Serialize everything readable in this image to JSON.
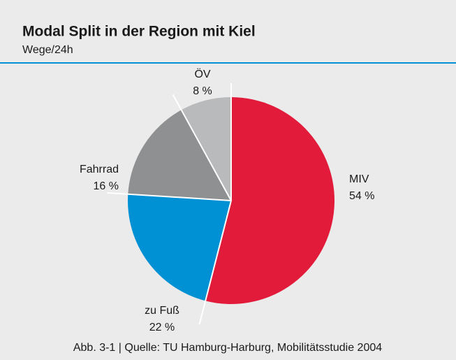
{
  "chart_data": {
    "type": "pie",
    "title": "Modal Split in der Region mit Kiel",
    "subtitle": "Wege/24h",
    "caption": "Abb. 3-1 | Quelle: TU Hamburg-Harburg, Mobilitätsstudie 2004",
    "categories": [
      "MIV",
      "zu Fuß",
      "Fahrrad",
      "ÖV"
    ],
    "values": [
      54,
      22,
      16,
      8
    ],
    "value_labels": [
      "54 %",
      "22 %",
      "16 %",
      "8 %"
    ],
    "colors": [
      "#e31b3b",
      "#0090d4",
      "#8f9092",
      "#b9babc"
    ]
  }
}
